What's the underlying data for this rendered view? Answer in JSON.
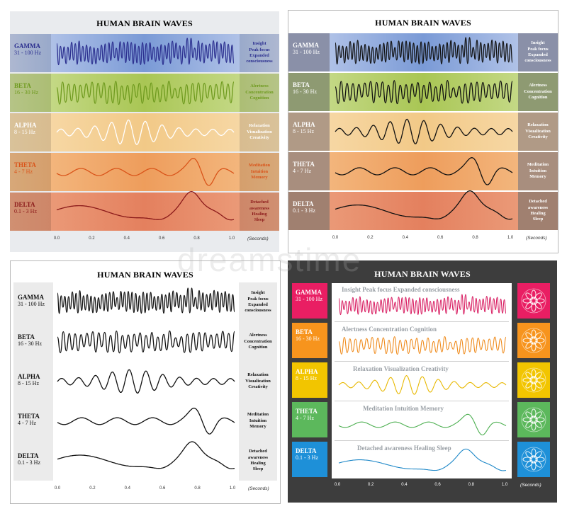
{
  "title": "HUMAN BRAIN WAVES",
  "seconds_label": "(Seconds)",
  "ticks": [
    "0.0",
    "0.2",
    "0.4",
    "0.6",
    "0.8",
    "1.0"
  ],
  "bands": [
    {
      "key": "gamma",
      "name": "GAMMA",
      "hz": "31 - 100 Hz",
      "desc": [
        "Insight",
        "Peak focus",
        "Expanded",
        "consciousness"
      ],
      "desc_line": "Insight    Peak focus    Expanded consciousness",
      "color_p1": "#2b2f8f",
      "text_p1": "#2b2f8f",
      "color_p4": "#d81b60",
      "bg_p1": "#b9c8e8",
      "bg_p2": "#b9c8e8",
      "label_p4": "#e91e63"
    },
    {
      "key": "beta",
      "name": "BETA",
      "hz": "16 - 30 Hz",
      "desc": [
        "Alertness",
        "Concentration",
        "Cognition"
      ],
      "desc_line": "Alertness    Concentration    Cognition",
      "color_p1": "#6e9a1e",
      "text_p1": "#6e9a1e",
      "color_p4": "#ef8a1a",
      "bg_p1": "#c7dc8a",
      "bg_p2": "#c7dc8a",
      "label_p4": "#f7941d"
    },
    {
      "key": "alpha",
      "name": "ALPHA",
      "hz": "8 - 15 Hz",
      "desc": [
        "Relaxation",
        "Visualization",
        "Creativity"
      ],
      "desc_line": "Relaxation    Visualization    Creativity",
      "color_p1": "#ffffff",
      "text_p1": "#ffffff",
      "color_p4": "#e8b800",
      "bg_p1": "#f6d6a0",
      "bg_p2": "#f6d6a0",
      "label_p4": "#f2c500"
    },
    {
      "key": "theta",
      "name": "THETA",
      "hz": "4 - 7 Hz",
      "desc": [
        "Meditation",
        "Intuition",
        "Memory"
      ],
      "desc_line": "Meditation    Intuition    Memory",
      "color_p1": "#d9541a",
      "text_p1": "#d9541a",
      "color_p4": "#4caf50",
      "bg_p1": "#f2b67a",
      "bg_p2": "#f2b67a",
      "label_p4": "#5cb85c"
    },
    {
      "key": "delta",
      "name": "DELTA",
      "hz": "0.1 - 3 Hz",
      "desc": [
        "Detached",
        "awareness",
        "Healing",
        "Sleep"
      ],
      "desc_line": "Detached awareness    Healing Sleep",
      "color_p1": "#8b1a1a",
      "text_p1": "#8b1a1a",
      "color_p4": "#1e88c8",
      "bg_p1": "#e99a7a",
      "bg_p2": "#e99a7a",
      "label_p4": "#1e90d8"
    }
  ],
  "watermark": "dreamstime"
}
